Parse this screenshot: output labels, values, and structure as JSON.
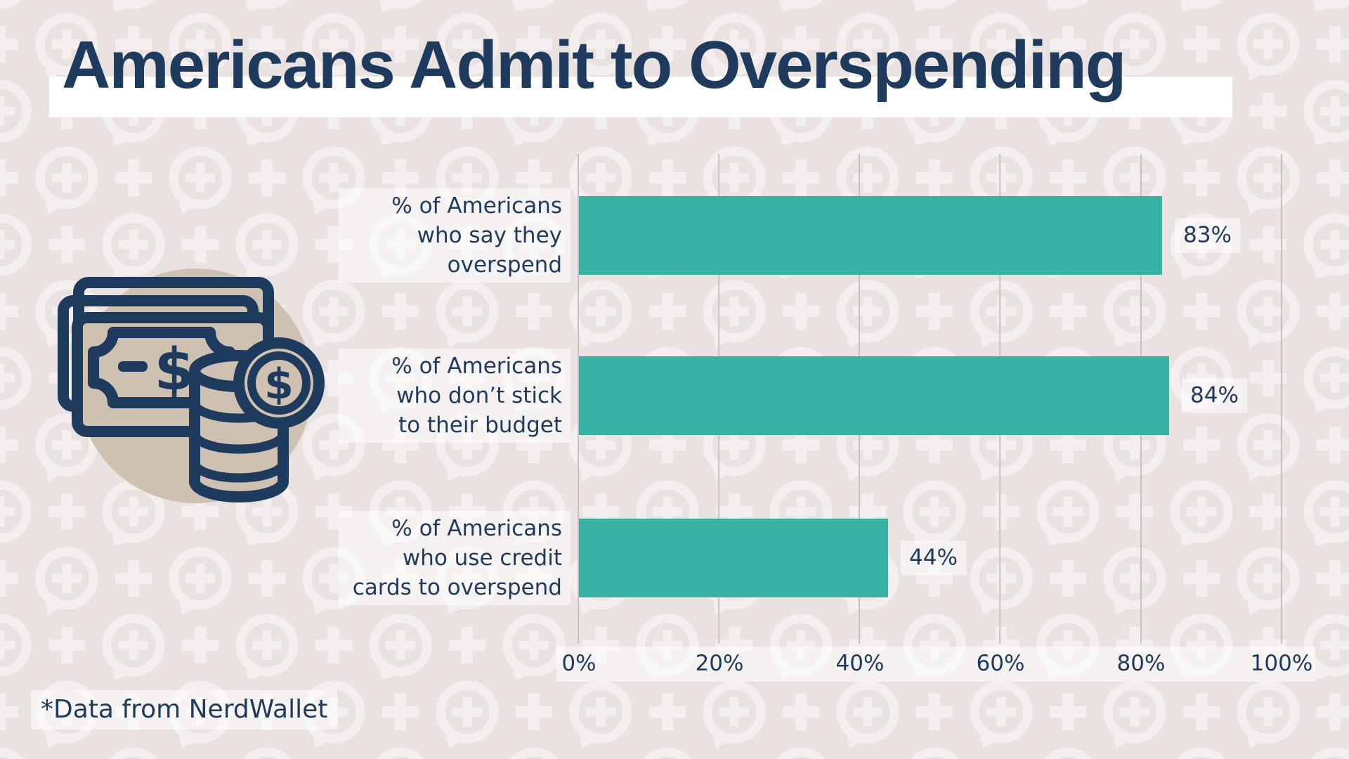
{
  "title": "Americans Admit to Overspending",
  "footnote": "*Data from NerdWallet",
  "icon": "money-bills-and-coins-illustration",
  "background_motif": "speech-bubble-plus-pattern",
  "colors": {
    "navy": "#1E3A5C",
    "teal": "#38B2A3",
    "background": "#EAE2E1",
    "pattern": "#F4EFEE",
    "tan_circle": "#CEC1B2",
    "gridline": "#C9C1C0",
    "title_highlight": "#FFFFFF"
  },
  "chart_data": {
    "type": "bar",
    "orientation": "horizontal",
    "title": "Americans Admit to Overspending",
    "categories": [
      "% of Americans who say they overspend",
      "% of Americans who don’t stick to their budget",
      "% of Americans who use credit cards to overspend"
    ],
    "category_lines": [
      [
        "% of Americans",
        "who say they",
        "overspend"
      ],
      [
        "% of Americans",
        "who don’t stick",
        "to their budget"
      ],
      [
        "% of Americans",
        "who use credit",
        "cards to overspend"
      ]
    ],
    "values": [
      83,
      84,
      44
    ],
    "value_labels": [
      "83%",
      "84%",
      "44%"
    ],
    "xlim": [
      0,
      100
    ],
    "x_ticks": [
      "0%",
      "20%",
      "40%",
      "60%",
      "80%",
      "100%"
    ],
    "grid": true,
    "legend": "none",
    "bar_color": "#38B2A3",
    "source": "*Data from NerdWallet"
  }
}
